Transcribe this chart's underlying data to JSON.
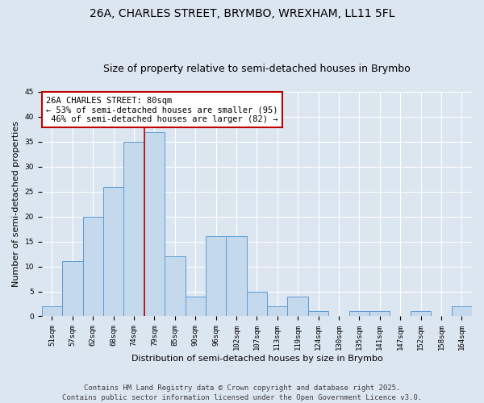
{
  "title": "26A, CHARLES STREET, BRYMBO, WREXHAM, LL11 5FL",
  "subtitle": "Size of property relative to semi-detached houses in Brymbo",
  "xlabel": "Distribution of semi-detached houses by size in Brymbo",
  "ylabel": "Number of semi-detached properties",
  "categories": [
    "51sqm",
    "57sqm",
    "62sqm",
    "68sqm",
    "74sqm",
    "79sqm",
    "85sqm",
    "90sqm",
    "96sqm",
    "102sqm",
    "107sqm",
    "113sqm",
    "119sqm",
    "124sqm",
    "130sqm",
    "135sqm",
    "141sqm",
    "147sqm",
    "152sqm",
    "158sqm",
    "164sqm"
  ],
  "values": [
    2,
    11,
    20,
    26,
    35,
    37,
    12,
    4,
    16,
    16,
    5,
    2,
    4,
    1,
    0,
    1,
    1,
    0,
    1,
    0,
    2
  ],
  "bar_color": "#c5d9ed",
  "bar_edge_color": "#5b9bd5",
  "vline_color": "#c00000",
  "annotation_text": "26A CHARLES STREET: 80sqm\n← 53% of semi-detached houses are smaller (95)\n 46% of semi-detached houses are larger (82) →",
  "annotation_box_color": "white",
  "annotation_box_edge_color": "#c00000",
  "ylim": [
    0,
    45
  ],
  "yticks": [
    0,
    5,
    10,
    15,
    20,
    25,
    30,
    35,
    40,
    45
  ],
  "bg_color": "#dce6f1",
  "plot_bg_color": "#dce6f1",
  "grid_color": "white",
  "footer": "Contains HM Land Registry data © Crown copyright and database right 2025.\nContains public sector information licensed under the Open Government Licence v3.0.",
  "title_fontsize": 10,
  "subtitle_fontsize": 9,
  "xlabel_fontsize": 8,
  "ylabel_fontsize": 8,
  "tick_fontsize": 6.5,
  "annot_fontsize": 7.5,
  "footer_fontsize": 6.5,
  "vline_xindex": 4.5
}
